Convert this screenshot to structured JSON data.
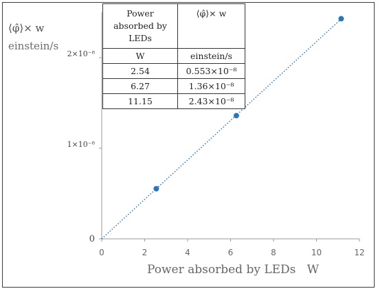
{
  "chart_data": {
    "type": "scatter",
    "title": "",
    "xlabel": "Power absorbed by LEDs   W",
    "ylabel_symbol": "⟨φ̂⟩× w",
    "ylabel_unit": "einstein/s",
    "xlim": [
      0,
      12
    ],
    "ylim": [
      0,
      2.5e-08
    ],
    "x_ticks": [
      0,
      2,
      4,
      6,
      8,
      10,
      12
    ],
    "x_tick_labels": [
      "0",
      "2",
      "4",
      "6",
      "8",
      "10",
      "12"
    ],
    "y_ticks": [
      0,
      1e-08,
      2e-08
    ],
    "y_tick_labels": [
      "0",
      "1×10⁻⁸",
      "2×10⁻⁸"
    ],
    "grid": false,
    "series": [
      {
        "x": [
          2.54,
          6.27,
          11.15
        ],
        "y": [
          5.53e-09,
          1.36e-08,
          2.43e-08
        ],
        "color": "#2e75b6",
        "marker": "circle",
        "trendline": "linear through origin, dotted"
      }
    ]
  },
  "table": {
    "headers": [
      {
        "line1": "Power",
        "line2": "absorbed by",
        "line3": "LEDs"
      },
      {
        "line1": "⟨φ̂⟩× w"
      }
    ],
    "units": [
      "W",
      "einstein/s"
    ],
    "rows": [
      [
        "2.54",
        "0.553×10⁻⁸"
      ],
      [
        "6.27",
        "1.36×10⁻⁸"
      ],
      [
        "11.15",
        "2.43×10⁻⁸"
      ]
    ]
  }
}
